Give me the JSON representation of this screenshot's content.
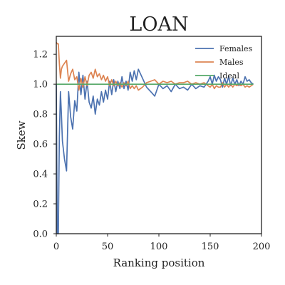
{
  "chart_data": {
    "type": "line",
    "title": "LOAN",
    "xlabel": "Ranking position",
    "ylabel": "Skew",
    "xlim": [
      0,
      200
    ],
    "ylim": [
      0,
      1.32
    ],
    "xticks": [
      0,
      50,
      100,
      150,
      200
    ],
    "yticks": [
      0.0,
      0.2,
      0.4,
      0.6,
      0.8,
      1.0,
      1.2
    ],
    "xtick_labels": [
      "0",
      "50",
      "100",
      "150",
      "200"
    ],
    "ytick_labels": [
      "0.0",
      "0.2",
      "0.4",
      "0.6",
      "0.8",
      "1.0",
      "1.2"
    ],
    "grid": false,
    "legend_position": "top-right",
    "series": [
      {
        "name": "Females",
        "color": "#4c72b0",
        "x": [
          0,
          1,
          2,
          3,
          4,
          5,
          6,
          8,
          10,
          12,
          14,
          16,
          18,
          20,
          22,
          24,
          26,
          28,
          30,
          32,
          34,
          36,
          38,
          40,
          42,
          44,
          46,
          48,
          50,
          52,
          54,
          56,
          58,
          60,
          62,
          64,
          66,
          68,
          70,
          72,
          74,
          76,
          78,
          80,
          84,
          88,
          92,
          96,
          100,
          104,
          108,
          112,
          116,
          120,
          124,
          128,
          132,
          136,
          140,
          144,
          148,
          150,
          152,
          154,
          156,
          158,
          160,
          162,
          164,
          166,
          168,
          170,
          172,
          174,
          176,
          178,
          180,
          182,
          184,
          186,
          188,
          190,
          192
        ],
        "y": [
          1.0,
          0.0,
          0.0,
          0.65,
          0.95,
          0.8,
          0.62,
          0.5,
          0.42,
          0.95,
          0.78,
          0.7,
          0.89,
          0.82,
          1.08,
          0.93,
          1.06,
          0.9,
          1.02,
          0.88,
          0.84,
          0.92,
          0.8,
          0.9,
          0.86,
          0.95,
          0.88,
          0.96,
          0.9,
          1.02,
          0.93,
          1.03,
          0.95,
          1.02,
          0.97,
          1.05,
          0.97,
          1.02,
          0.96,
          1.08,
          1.02,
          1.09,
          1.03,
          1.1,
          1.04,
          0.98,
          0.95,
          0.92,
          1.0,
          0.97,
          0.99,
          0.95,
          1.0,
          0.97,
          0.98,
          0.96,
          1.0,
          0.97,
          0.99,
          0.98,
          1.02,
          1.05,
          1.0,
          1.06,
          1.02,
          1.05,
          1.03,
          0.98,
          1.04,
          1.0,
          1.05,
          0.99,
          1.04,
          1.0,
          1.03,
          0.99,
          1.02,
          1.0,
          1.05,
          1.02,
          1.03,
          1.01,
          1.0
        ]
      },
      {
        "name": "Males",
        "color": "#dd8452",
        "x": [
          0,
          1,
          2,
          3,
          4,
          5,
          6,
          8,
          10,
          12,
          14,
          16,
          18,
          20,
          22,
          24,
          26,
          28,
          30,
          32,
          34,
          36,
          38,
          40,
          42,
          44,
          46,
          48,
          50,
          52,
          54,
          56,
          58,
          60,
          62,
          64,
          66,
          68,
          70,
          72,
          74,
          76,
          78,
          80,
          84,
          88,
          92,
          96,
          100,
          104,
          108,
          112,
          116,
          120,
          124,
          128,
          132,
          136,
          140,
          144,
          148,
          150,
          152,
          154,
          156,
          158,
          160,
          162,
          164,
          166,
          168,
          170,
          172,
          174,
          176,
          178,
          180,
          182,
          184,
          186,
          188,
          190,
          192
        ],
        "y": [
          1.28,
          1.27,
          1.27,
          1.14,
          1.04,
          1.1,
          1.12,
          1.14,
          1.16,
          1.02,
          1.07,
          1.1,
          1.03,
          1.05,
          0.96,
          1.04,
          0.98,
          1.05,
          0.99,
          1.06,
          1.08,
          1.04,
          1.1,
          1.05,
          1.07,
          1.03,
          1.06,
          1.02,
          1.05,
          0.99,
          1.03,
          0.99,
          1.02,
          0.99,
          1.01,
          0.98,
          1.01,
          0.99,
          1.02,
          0.97,
          0.99,
          0.97,
          0.99,
          0.96,
          0.98,
          1.01,
          1.02,
          1.03,
          1.0,
          1.02,
          1.01,
          1.02,
          1.0,
          1.01,
          1.01,
          1.02,
          1.0,
          1.01,
          1.0,
          1.01,
          0.99,
          0.98,
          1.0,
          0.97,
          0.99,
          0.98,
          0.98,
          1.01,
          0.98,
          1.0,
          0.98,
          1.0,
          0.98,
          1.0,
          0.99,
          1.0,
          0.99,
          1.0,
          0.98,
          0.99,
          0.98,
          0.99,
          1.0
        ]
      },
      {
        "name": "Ideal",
        "color": "#55a868",
        "x": [
          0,
          192
        ],
        "y": [
          1.0,
          1.0
        ]
      }
    ]
  }
}
